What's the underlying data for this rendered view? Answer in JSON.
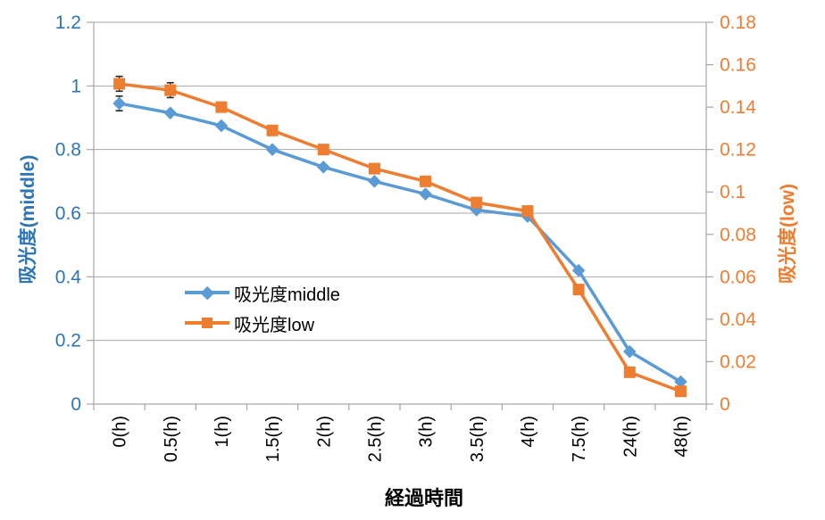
{
  "chart_data": {
    "type": "line",
    "xlabel": "経過時間",
    "categories": [
      "0(h)",
      "0.5(h)",
      "1(h)",
      "1.5(h)",
      "2(h)",
      "2.5(h)",
      "3(h)",
      "3.5(h)",
      "4(h)",
      "7.5(h)",
      "24(h)",
      "48(h)"
    ],
    "series": [
      {
        "name": "吸光度middle",
        "axis": "left",
        "color": "#5B9BD5",
        "marker": "diamond",
        "values": [
          0.945,
          0.915,
          0.875,
          0.8,
          0.745,
          0.7,
          0.66,
          0.61,
          0.59,
          0.42,
          0.165,
          0.07
        ]
      },
      {
        "name": "吸光度low",
        "axis": "right",
        "color": "#ED7D31",
        "marker": "square",
        "values": [
          0.151,
          0.148,
          0.14,
          0.129,
          0.12,
          0.111,
          0.105,
          0.095,
          0.091,
          0.054,
          0.015,
          0.006
        ]
      }
    ],
    "axes": {
      "left": {
        "title": "吸光度(middle)",
        "min": 0,
        "max": 1.2,
        "tick_step": 0.2,
        "tick_labels": [
          "1.2",
          "1",
          "0.8",
          "0.6",
          "0.4",
          "0.2",
          "0"
        ],
        "color": "#2E75B6"
      },
      "right": {
        "title": "吸光度(low)",
        "min": 0,
        "max": 0.18,
        "tick_step": 0.02,
        "tick_labels": [
          "0.18",
          "0.16",
          "0.14",
          "0.12",
          "0.1",
          "0.08",
          "0.06",
          "0.04",
          "0.02",
          "0"
        ],
        "color": "#ED7D31"
      }
    },
    "error_bars": [
      {
        "series": 0,
        "index": 0,
        "plus": 0.023,
        "minus": 0.023
      },
      {
        "series": 1,
        "index": 0,
        "plus": 0.0035,
        "minus": 0.0035
      },
      {
        "series": 1,
        "index": 1,
        "plus": 0.0035,
        "minus": 0.0035
      }
    ],
    "grid": true,
    "grid_color": "#A6A6A6",
    "axis_line_color": "#A6A6A6",
    "tick_label_color_x": "#000000",
    "legend_position": "inside-center-left"
  }
}
